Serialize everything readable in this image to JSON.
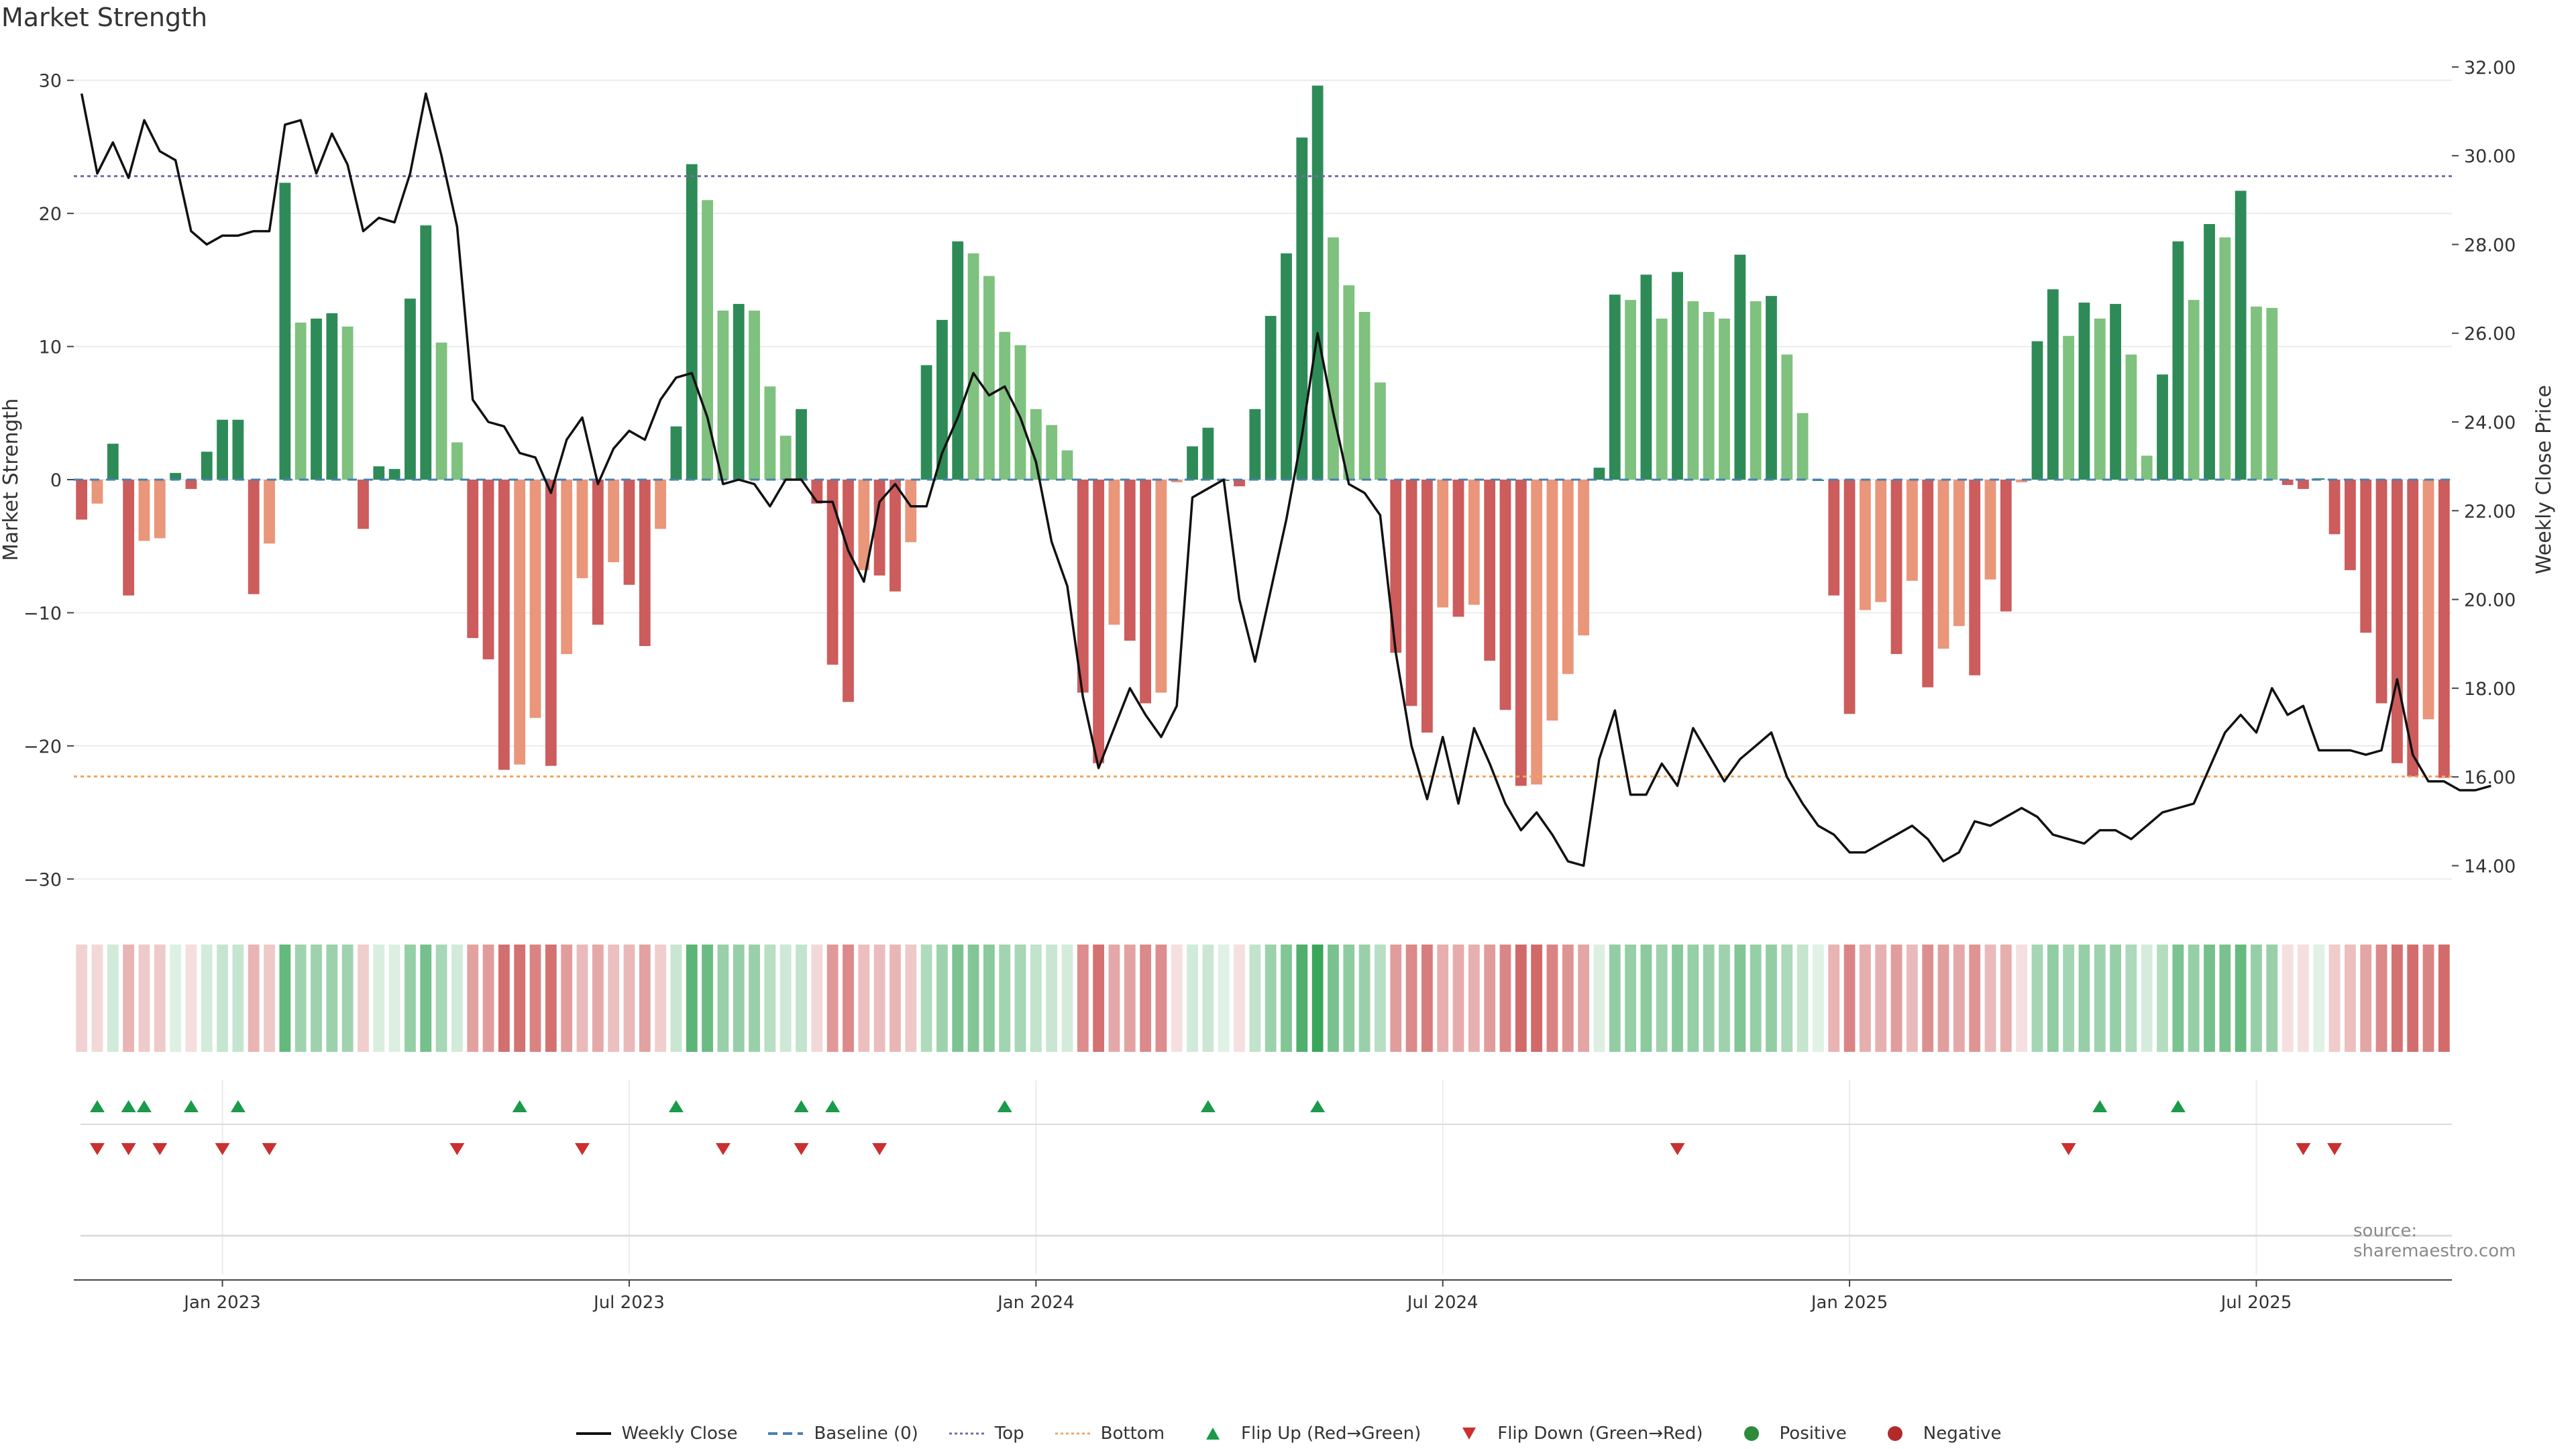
{
  "chart_data": {
    "type": "bar",
    "title": "Market Strength",
    "ylabel": "Market Strength",
    "y2label": "Weekly Close Price",
    "ylim": [
      -32,
      32
    ],
    "y2lim": [
      13.1,
      32.3
    ],
    "y_ticks": [
      {
        "v": 30,
        "label": "30"
      },
      {
        "v": 20,
        "label": "20"
      },
      {
        "v": 10,
        "label": "10"
      },
      {
        "v": 0,
        "label": "0"
      },
      {
        "v": -10,
        "label": "−10"
      },
      {
        "v": -20,
        "label": "−20"
      },
      {
        "v": -30,
        "label": "−30"
      }
    ],
    "y2_ticks": [
      {
        "v": 32,
        "label": "32.00"
      },
      {
        "v": 30,
        "label": "30.00"
      },
      {
        "v": 28,
        "label": "28.00"
      },
      {
        "v": 26,
        "label": "26.00"
      },
      {
        "v": 24,
        "label": "24.00"
      },
      {
        "v": 22,
        "label": "22.00"
      },
      {
        "v": 20,
        "label": "20.00"
      },
      {
        "v": 18,
        "label": "18.00"
      },
      {
        "v": 16,
        "label": "16.00"
      },
      {
        "v": 14,
        "label": "14.00"
      }
    ],
    "x_ticks": [
      {
        "week": 9,
        "label": "Jan 2023"
      },
      {
        "week": 35,
        "label": "Jul 2023"
      },
      {
        "week": 61,
        "label": "Jan 2024"
      },
      {
        "week": 87,
        "label": "Jul 2024"
      },
      {
        "week": 113,
        "label": "Jan 2025"
      },
      {
        "week": 139,
        "label": "Jul 2025"
      }
    ],
    "top_line": 22.8,
    "bottom_line": -22.3,
    "baseline": 0,
    "strength": [
      -3,
      -1.8,
      2.7,
      -8.7,
      -4.6,
      -4.4,
      0.5,
      -0.7,
      2.1,
      4.5,
      4.5,
      -8.6,
      -4.8,
      22.3,
      11.8,
      12.1,
      12.5,
      11.5,
      -3.7,
      1,
      0.8,
      13.6,
      19.1,
      10.3,
      2.8,
      -11.9,
      -13.5,
      -21.8,
      -21.4,
      -17.9,
      -21.5,
      -13.1,
      -7.4,
      -10.9,
      -6.2,
      -7.9,
      -12.5,
      -3.7,
      4,
      23.7,
      21,
      12.7,
      13.2,
      12.7,
      7,
      3.3,
      5.3,
      -1.8,
      -13.9,
      -16.7,
      -6.8,
      -7.2,
      -8.4,
      -4.7,
      8.6,
      12,
      17.9,
      17,
      15.3,
      11.1,
      10.1,
      5.3,
      4.1,
      2.2,
      -16,
      -21.3,
      -10.9,
      -12.1,
      -16.8,
      -16,
      -0.2,
      2.5,
      3.9,
      0,
      -0.5,
      5.3,
      12.3,
      17,
      25.7,
      29.6,
      18.2,
      14.6,
      12.6,
      7.3,
      -13,
      -17,
      -19,
      -9.6,
      -10.3,
      -9.4,
      -13.6,
      -17.3,
      -23,
      -22.9,
      -18.1,
      -14.6,
      -11.7,
      0.9,
      13.9,
      13.5,
      15.4,
      12.1,
      15.6,
      13.4,
      12.6,
      12.1,
      16.9,
      13.4,
      13.8,
      9.4,
      5,
      0,
      -8.7,
      -17.6,
      -9.8,
      -9.2,
      -13.1,
      -7.6,
      -15.6,
      -12.7,
      -11,
      -14.7,
      -7.5,
      -9.9,
      -0.2,
      10.4,
      14.3,
      10.8,
      13.3,
      12.1,
      13.2,
      9.4,
      1.8,
      7.9,
      17.9,
      13.5,
      19.2,
      18.2,
      21.7,
      13,
      12.9,
      -0.4,
      -0.7,
      0.1,
      -4.1,
      -6.8,
      -11.5,
      -16.8,
      -21.3,
      -22.3,
      -18,
      -22.4
    ],
    "price": [
      31.4,
      29.6,
      30.3,
      29.5,
      30.8,
      30.1,
      29.9,
      28.3,
      28,
      28.2,
      28.2,
      28.3,
      28.3,
      30.7,
      30.8,
      29.6,
      30.5,
      29.8,
      28.3,
      28.6,
      28.5,
      29.6,
      31.4,
      30,
      28.4,
      24.5,
      24,
      23.9,
      23.3,
      23.2,
      22.4,
      23.6,
      24.1,
      22.6,
      23.4,
      23.8,
      23.6,
      24.5,
      25,
      25.1,
      24.1,
      22.6,
      22.7,
      22.6,
      22.1,
      22.7,
      22.7,
      22.2,
      22.2,
      21.1,
      20.4,
      22.2,
      22.6,
      22.1,
      22.1,
      23.3,
      24.1,
      25.1,
      24.6,
      24.8,
      24.1,
      23.1,
      21.3,
      20.3,
      17.8,
      16.2,
      17.1,
      18,
      17.4,
      16.9,
      17.6,
      22.3,
      22.5,
      22.7,
      20,
      18.6,
      20.2,
      21.8,
      23.7,
      26,
      24.2,
      22.6,
      22.4,
      21.9,
      18.8,
      16.7,
      15.5,
      16.9,
      15.4,
      17.1,
      16.3,
      15.4,
      14.8,
      15.2,
      14.7,
      14.1,
      14,
      16.4,
      17.5,
      15.6,
      15.6,
      16.3,
      15.8,
      17.1,
      16.5,
      15.9,
      16.4,
      16.7,
      17,
      16,
      15.4,
      14.9,
      14.7,
      14.3,
      14.3,
      14.5,
      14.7,
      14.9,
      14.6,
      14.1,
      14.3,
      15,
      14.9,
      15.1,
      15.3,
      15.1,
      14.7,
      14.6,
      14.5,
      14.8,
      14.8,
      14.6,
      14.9,
      15.2,
      15.3,
      15.4,
      16.2,
      17,
      17.4,
      17,
      18,
      17.4,
      17.6,
      16.6,
      16.6,
      16.6,
      16.5,
      16.6,
      18.2,
      16.5,
      15.9,
      15.9,
      15.7,
      15.7,
      15.8
    ],
    "flip_up_weeks": [
      1,
      3,
      4,
      7,
      10,
      28,
      38,
      46,
      48,
      59,
      72,
      79,
      129,
      134
    ],
    "flip_down_weeks": [
      1,
      3,
      5,
      9,
      12,
      24,
      32,
      41,
      46,
      51,
      102,
      127,
      142,
      144
    ],
    "series": [
      {
        "name": "Weekly Close"
      },
      {
        "name": "Baseline (0)"
      },
      {
        "name": "Top"
      },
      {
        "name": "Bottom"
      },
      {
        "name": "Flip Up (Red→Green)"
      },
      {
        "name": "Flip Down (Green→Red)"
      },
      {
        "name": "Positive"
      },
      {
        "name": "Negative"
      }
    ]
  },
  "source": "source: sharemaestro.com",
  "colors": {
    "pos_strong": "#2e8b57",
    "pos_weak": "#7fc17f",
    "neg_strong": "#cd5c5c",
    "neg_weak": "#e9967a",
    "price": "#111111",
    "top": "#7b68ae",
    "bottom": "#f4a460",
    "baseline": "#4682b4",
    "flip_up": "#1a9a4a",
    "flip_down": "#cc2f2f"
  },
  "legend": [
    {
      "label": "Weekly Close",
      "icon": "line-solid"
    },
    {
      "label": "Baseline (0)",
      "icon": "line-dashed"
    },
    {
      "label": "Top",
      "icon": "line-dotted"
    },
    {
      "label": "Bottom",
      "icon": "line-dotted"
    },
    {
      "label": "Flip Up (Red→Green)",
      "icon": "triangle-up"
    },
    {
      "label": "Flip Down (Green→Red)",
      "icon": "triangle-down"
    },
    {
      "label": "Positive",
      "icon": "circle"
    },
    {
      "label": "Negative",
      "icon": "circle"
    }
  ]
}
